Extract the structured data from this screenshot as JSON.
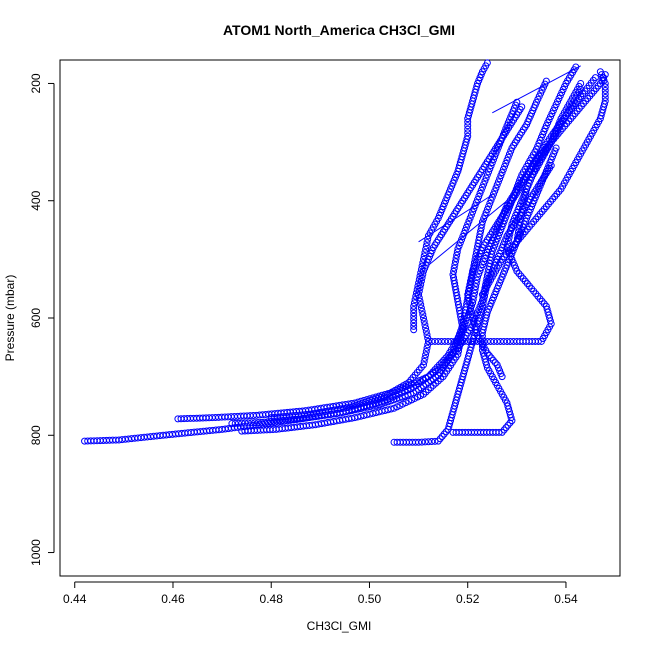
{
  "chart_data": {
    "type": "scatter",
    "title": "ATOM1 North_America CH3Cl_GMI",
    "xlabel": "CH3Cl_GMI",
    "ylabel": "Pressure (mbar)",
    "xlim": [
      0.437,
      0.551
    ],
    "ylim": [
      1040,
      160
    ],
    "y_reversed": true,
    "x_ticks": [
      "0.44",
      "0.46",
      "0.48",
      "0.50",
      "0.52",
      "0.54"
    ],
    "y_ticks": [
      "200",
      "400",
      "600",
      "800",
      "1000"
    ],
    "grid": false,
    "legend": "none",
    "marker": "open-circle",
    "color": "#0000ff",
    "profiles": [
      {
        "x": [
          0.442,
          0.449,
          0.458,
          0.47,
          0.482,
          0.494,
          0.503,
          0.509,
          0.514,
          0.518,
          0.521,
          0.523,
          0.524,
          0.525,
          0.527,
          0.529,
          0.531,
          0.534,
          0.536,
          0.538,
          0.54,
          0.542
        ],
        "y": [
          810,
          808,
          800,
          790,
          777,
          762,
          742,
          718,
          688,
          652,
          612,
          570,
          528,
          486,
          444,
          400,
          356,
          312,
          272,
          236,
          200,
          172
        ]
      },
      {
        "x": [
          0.461,
          0.468,
          0.477,
          0.487,
          0.497,
          0.505,
          0.512,
          0.516,
          0.519,
          0.521,
          0.522,
          0.524,
          0.526,
          0.528,
          0.531,
          0.534,
          0.537,
          0.54,
          0.543,
          0.546
        ],
        "y": [
          772,
          770,
          766,
          758,
          745,
          726,
          700,
          664,
          620,
          574,
          530,
          488,
          448,
          408,
          368,
          328,
          290,
          255,
          222,
          190
        ]
      },
      {
        "x": [
          0.472,
          0.478,
          0.486,
          0.494,
          0.502,
          0.509,
          0.514,
          0.517,
          0.519,
          0.52,
          0.521,
          0.522,
          0.523,
          0.525,
          0.527,
          0.529,
          0.532,
          0.534,
          0.536
        ],
        "y": [
          780,
          778,
          772,
          762,
          748,
          728,
          698,
          658,
          612,
          566,
          522,
          478,
          436,
          394,
          352,
          310,
          270,
          232,
          196
        ]
      },
      {
        "x": [
          0.474,
          0.481,
          0.489,
          0.497,
          0.505,
          0.511,
          0.515,
          0.518,
          0.519,
          0.518,
          0.517,
          0.518,
          0.52,
          0.522,
          0.524,
          0.526,
          0.528,
          0.53
        ],
        "y": [
          793,
          790,
          782,
          770,
          754,
          730,
          700,
          662,
          618,
          572,
          526,
          482,
          440,
          398,
          356,
          314,
          272,
          232
        ]
      },
      {
        "x": [
          0.48,
          0.488,
          0.496,
          0.503,
          0.508,
          0.511,
          0.512,
          0.511,
          0.51,
          0.511,
          0.513,
          0.516,
          0.519,
          0.522,
          0.525,
          0.528,
          0.531
        ],
        "y": [
          770,
          764,
          752,
          734,
          710,
          680,
          640,
          600,
          560,
          520,
          480,
          440,
          400,
          360,
          320,
          280,
          240
        ]
      },
      {
        "x": [
          0.505,
          0.51,
          0.514,
          0.516,
          0.517,
          0.518,
          0.519,
          0.52,
          0.521,
          0.522,
          0.523,
          0.524,
          0.526,
          0.528,
          0.531,
          0.534,
          0.537
        ],
        "y": [
          812,
          812,
          810,
          790,
          760,
          730,
          700,
          670,
          640,
          610,
          580,
          540,
          500,
          460,
          420,
          380,
          340
        ]
      },
      {
        "x": [
          0.517,
          0.522,
          0.527,
          0.529,
          0.528,
          0.526,
          0.524,
          0.523,
          0.523,
          0.524,
          0.526,
          0.528,
          0.53,
          0.532,
          0.534,
          0.536,
          0.538
        ],
        "y": [
          795,
          795,
          795,
          775,
          745,
          715,
          685,
          655,
          625,
          590,
          550,
          510,
          470,
          430,
          390,
          350,
          310
        ]
      },
      {
        "x": [
          0.512,
          0.518,
          0.524,
          0.53,
          0.535,
          0.537,
          0.536,
          0.533,
          0.53,
          0.528,
          0.529,
          0.531,
          0.533,
          0.535,
          0.537,
          0.539,
          0.541,
          0.543
        ],
        "y": [
          640,
          640,
          640,
          640,
          640,
          610,
          580,
          550,
          520,
          480,
          440,
          400,
          360,
          330,
          300,
          270,
          240,
          210
        ]
      },
      {
        "x": [
          0.527,
          0.526,
          0.524,
          0.522,
          0.521,
          0.52,
          0.521,
          0.523,
          0.526,
          0.529,
          0.532,
          0.535,
          0.538,
          0.541,
          0.544,
          0.547,
          0.548
        ],
        "y": [
          700,
          680,
          660,
          630,
          600,
          560,
          520,
          480,
          440,
          400,
          360,
          320,
          290,
          260,
          230,
          200,
          185
        ]
      },
      {
        "x": [
          0.509,
          0.509,
          0.51,
          0.511,
          0.512,
          0.514,
          0.516,
          0.518,
          0.519,
          0.52,
          0.52,
          0.521,
          0.522,
          0.523,
          0.524
        ],
        "y": [
          620,
          580,
          540,
          500,
          460,
          430,
          390,
          350,
          320,
          290,
          260,
          230,
          200,
          180,
          165
        ]
      },
      {
        "x": [
          0.523,
          0.525,
          0.527,
          0.53,
          0.533,
          0.536,
          0.539,
          0.541,
          0.543,
          0.545,
          0.547,
          0.548,
          0.548,
          0.547
        ],
        "y": [
          560,
          530,
          500,
          470,
          440,
          410,
          380,
          350,
          320,
          290,
          260,
          230,
          200,
          180
        ]
      },
      {
        "x": [
          0.53,
          0.531,
          0.532,
          0.534,
          0.537,
          0.539,
          0.541,
          0.543
        ],
        "y": [
          470,
          420,
          380,
          340,
          300,
          260,
          230,
          200
        ]
      }
    ],
    "connector_lines": [
      {
        "x": [
          0.525,
          0.543
        ],
        "y": [
          250,
          170
        ]
      },
      {
        "x": [
          0.512,
          0.528
        ],
        "y": [
          510,
          400
        ]
      },
      {
        "x": [
          0.51,
          0.525
        ],
        "y": [
          470,
          390
        ]
      }
    ]
  }
}
